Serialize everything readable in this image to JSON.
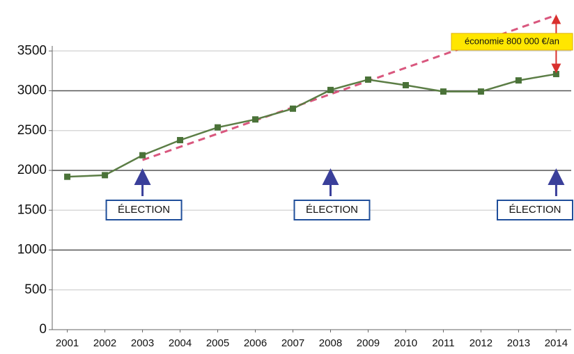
{
  "chart_data": {
    "type": "line",
    "x": [
      2001,
      2002,
      2003,
      2004,
      2005,
      2006,
      2007,
      2008,
      2009,
      2010,
      2011,
      2012,
      2013,
      2014
    ],
    "xlim": [
      2000.6,
      2014.4
    ],
    "xticks": [
      2001,
      2002,
      2003,
      2004,
      2005,
      2006,
      2007,
      2008,
      2009,
      2010,
      2011,
      2012,
      2013,
      2014
    ],
    "ylim": [
      0,
      4000
    ],
    "yticks": [
      0,
      500,
      1000,
      1500,
      2000,
      2500,
      3000,
      3500
    ],
    "grid": true,
    "series": [
      {
        "color": "#5b7d45",
        "values": [
          1920,
          1940,
          2190,
          2380,
          2540,
          2640,
          2775,
          3010,
          3140,
          3070,
          2990,
          2990,
          3130,
          3210
        ]
      },
      {
        "color": "#d9577e",
        "style": "dashed",
        "x": [
          2003,
          2014
        ],
        "values": [
          2130,
          3950
        ]
      }
    ],
    "annotations": [
      {
        "text": "ÉLECTION",
        "x": 2003
      },
      {
        "text": "ÉLECTION",
        "x": 2008
      },
      {
        "text": "ÉLECTION",
        "x": 2014
      }
    ],
    "savings_note": {
      "text": "économie 800 000 €/an",
      "x": 2014
    }
  }
}
